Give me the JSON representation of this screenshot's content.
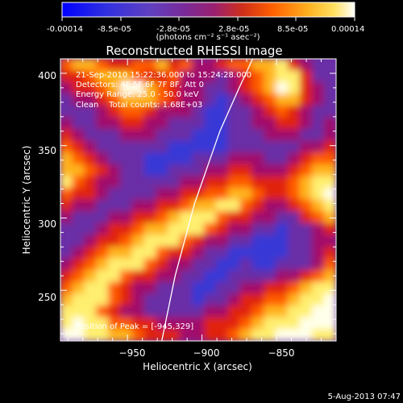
{
  "colorbar": {
    "tick_labels": [
      "-0.00014",
      "-8.5e-05",
      "-2.8e-05",
      "2.8e-05",
      "8.5e-05",
      "0.00014"
    ],
    "unit_label": "(photons cm⁻² s⁻¹ asec⁻²)",
    "range": [
      -0.00014,
      0.00014
    ]
  },
  "chart_data": {
    "type": "heatmap",
    "title": "Reconstructed RHESSI Image",
    "xlabel": "Heliocentric X (arcsec)",
    "ylabel": "Heliocentric Y (arcsec)",
    "xlim": [
      -995,
      -810
    ],
    "ylim": [
      215,
      410
    ],
    "x_ticks": [
      -950,
      -900,
      -850
    ],
    "y_ticks": [
      250,
      300,
      350,
      400
    ],
    "x_tick_labels": [
      "−950",
      "−900",
      "−850"
    ],
    "y_tick_labels": [
      "250",
      "300",
      "350",
      "400"
    ],
    "annotations": [
      "21-Sep-2010 15:22:36.000 to 15:24:28.000",
      "Detectors: 4F 5F 6F 7F 8F, Att 0",
      "Energy Range: 25.0 - 50.0 keV",
      "Clean    Total counts: 1.68E+03"
    ],
    "peak_label": "Position of Peak = [-945,329]",
    "peak": [
      -945,
      329
    ],
    "limb_curve": [
      [
        -927,
        215
      ],
      [
        -918,
        260
      ],
      [
        -905,
        310
      ],
      [
        -888,
        360
      ],
      [
        -875,
        390
      ],
      [
        -866,
        410
      ]
    ],
    "intensity_grid": {
      "rows_top_to_bottom": [
        "sggsrrssgrsmmrssggyrmpp",
        "rrsgggsrrsmmmpmrsgyyrpp",
        "mrrsgwwgsrmmppmrsgwyrmp",
        "pmmrsgggsrmmpbpmrsggrmp",
        "pppmrssrmmmpbbppmrsrmpp",
        "mppmmrrmmpppbbppmmrrmpm",
        "rmpppmmmpppbbbpppmmmppm",
        "srmppppppbbbbbppppppmmr",
        "gsrmpppbbbbpppmmmppmrss",
        "ggsrmppbbpppmmrrmmmrsgg",
        "ysrmmpppppmmrrssrrrsgyy",
        "srrmppppmmrrssggsrrsgyw",
        "rmmpppmmrrsggyysrmmrsgy",
        "mpppmmrrsgyyysrrmmpprsg",
        "pppmrrsggyyysrmmppbppmr",
        "ppmrrsgyyysrmmppbbbppmm",
        "pmrsggyysrrmppbbbbbppmr",
        "mrsgyyysrmmppbbpbbpppms",
        "rsgyysrrmmppbbppppmmrsg",
        "sgyysrmmpppbbppmmrrsgyy",
        "gyyysrmppppbppmrrssgyyw",
        "yyysrmmpppppmmrrsggyyww",
        "ywyyssrrmmmmrrrsgyyywww",
        "wwyyggsrrrmmrrsgyywwwyy"
      ],
      "legend": {
        "w": "#ffffea",
        "y": "#ffef70",
        "g": "#ffb41e",
        "s": "#ff5a00",
        "r": "#e0200e",
        "m": "#a0106c",
        "p": "#6a2fa6",
        "b": "#3838d6"
      }
    }
  },
  "footer": {
    "date": "5-Aug-2013 07:47"
  }
}
